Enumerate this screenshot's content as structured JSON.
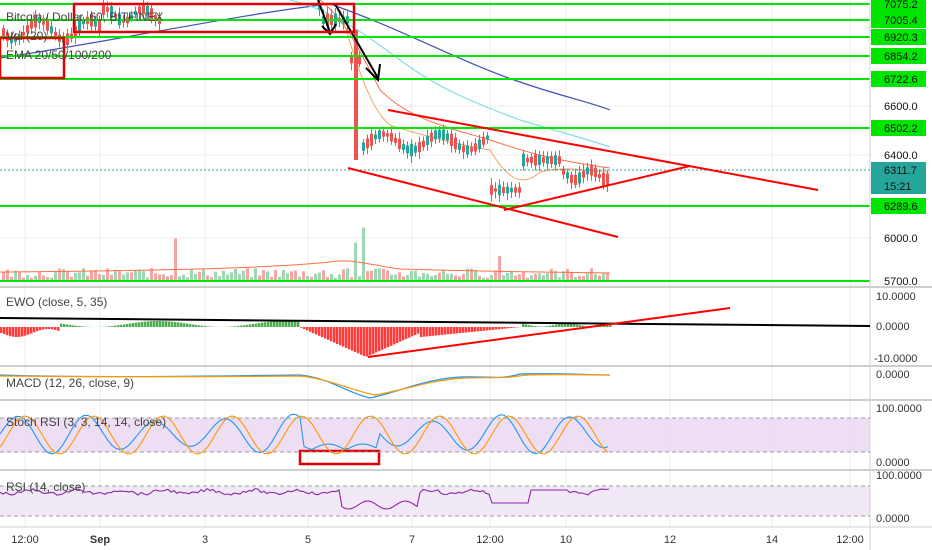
{
  "header": {
    "symbol_line": "Bitcoin / Dollar, 60, BITFINEX",
    "vol_line": "Vol (20)",
    "ema_line": "EMA 20/50/100/200"
  },
  "time_axis": {
    "labels": [
      "12:00",
      "Sep",
      "3",
      "5",
      "7",
      "12:00",
      "10",
      "12",
      "14",
      "12:00"
    ]
  },
  "price_axis": {
    "levels": [
      {
        "value": "7075.2",
        "tag": "green"
      },
      {
        "value": "7005.4",
        "tag": "green"
      },
      {
        "value": "6920.3",
        "tag": "green"
      },
      {
        "value": "6854.2",
        "tag": "green"
      },
      {
        "value": "6722.6",
        "tag": "green"
      },
      {
        "value": "6600.0",
        "tag": "none"
      },
      {
        "value": "6502.2",
        "tag": "green"
      },
      {
        "value": "6400.0",
        "tag": "none"
      },
      {
        "value": "6311.7",
        "tag": "last"
      },
      {
        "value": "15:21",
        "tag": "timer"
      },
      {
        "value": "6289.6",
        "tag": "green"
      },
      {
        "value": "6000.0",
        "tag": "none"
      },
      {
        "value": "5700.0",
        "tag": "none"
      }
    ]
  },
  "panes": {
    "ewo": {
      "title": "EWO (close, 5, 35)",
      "ticks": [
        "10.0000",
        "0.0000",
        "-10.0000"
      ]
    },
    "macd": {
      "title": "MACD (12, 26, close, 9)",
      "ticks": [
        "0.0000"
      ]
    },
    "stoch": {
      "title": "Stoch RSI (3, 3, 14, 14, close)",
      "ticks": [
        "100.0000",
        "0.0000"
      ]
    },
    "rsi": {
      "title": "RSI (14, close)",
      "ticks": [
        "100.0000",
        "0.0000"
      ]
    }
  },
  "colors": {
    "bull": "#26a69a",
    "bear": "#ef5350",
    "support_line": "#00e600",
    "trendline": "#ff0000",
    "ema20": "#f7a35c",
    "ema50": "#ff7043",
    "ema100": "#80deea",
    "ema200": "#3f51b5",
    "oscillator_fill": "#e1bee7"
  },
  "chart_data": {
    "type": "candlestick",
    "title": "Bitcoin / Dollar, 60, BITFINEX",
    "price_range": [
      5700,
      7100
    ],
    "horizontal_levels": [
      7075.2,
      7005.4,
      6920.3,
      6854.2,
      6722.6,
      6502.2,
      6311.7,
      6289.6
    ],
    "last_price": 6311.7,
    "indicators": [
      "Vol (20)",
      "EMA 20/50/100/200",
      "EWO (close, 5, 35)",
      "MACD (12, 26, close, 9)",
      "Stoch RSI (3, 3, 14, 14, close)",
      "RSI (14, close)"
    ],
    "ewo_range": [
      -10,
      10
    ],
    "stoch_range": [
      0,
      100
    ],
    "rsi_range": [
      0,
      100
    ]
  }
}
